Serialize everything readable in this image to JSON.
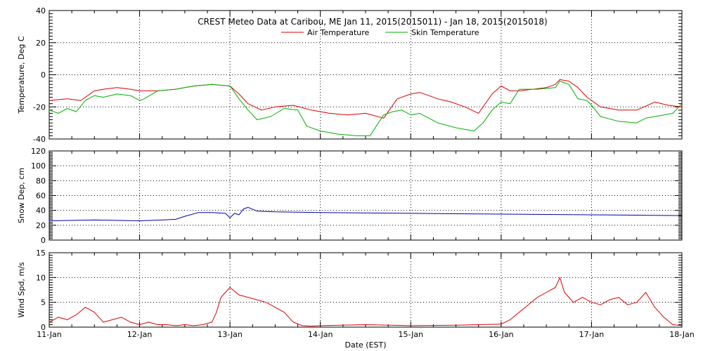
{
  "chart_data": [
    {
      "type": "line",
      "title": "CREST Meteo Data at Caribou, ME   Jan 11, 2015(2015011) - Jan 18, 2015(2015018)",
      "ylabel": "Temperature, Deg C",
      "xlim": [
        0,
        7
      ],
      "ylim": [
        -40,
        40
      ],
      "yticks": [
        -40,
        -20,
        0,
        20,
        40
      ],
      "grid": true,
      "legend": "top-center",
      "series": [
        {
          "name": "Air Temperature",
          "color": "#dd0000",
          "x": [
            0,
            0.2,
            0.35,
            0.5,
            0.6,
            0.75,
            0.9,
            1.0,
            1.2,
            1.4,
            1.6,
            1.8,
            2.0,
            2.1,
            2.2,
            2.35,
            2.5,
            2.7,
            2.9,
            3.1,
            3.3,
            3.5,
            3.7,
            3.85,
            4.0,
            4.1,
            4.2,
            4.3,
            4.45,
            4.6,
            4.75,
            4.9,
            5.0,
            5.1,
            5.2,
            5.35,
            5.5,
            5.6,
            5.65,
            5.75,
            5.85,
            5.95,
            6.1,
            6.3,
            6.5,
            6.7,
            6.85,
            7.0
          ],
          "values": [
            -16,
            -15,
            -16,
            -10,
            -9,
            -8,
            -9,
            -10,
            -10,
            -9,
            -7,
            -6,
            -7,
            -12,
            -18,
            -22,
            -20,
            -19,
            -22,
            -24,
            -25,
            -24,
            -27,
            -15,
            -12,
            -11,
            -13,
            -15,
            -17,
            -20,
            -24,
            -12,
            -7,
            -10,
            -10,
            -9,
            -8,
            -6,
            -3,
            -4,
            -8,
            -14,
            -20,
            -22,
            -22,
            -17,
            -19,
            -20
          ]
        },
        {
          "name": "Skin Temperature",
          "color": "#00b000",
          "x": [
            0,
            0.1,
            0.2,
            0.3,
            0.4,
            0.5,
            0.6,
            0.75,
            0.9,
            1.0,
            1.05,
            1.2,
            1.4,
            1.6,
            1.8,
            2.0,
            2.1,
            2.2,
            2.3,
            2.45,
            2.6,
            2.75,
            2.85,
            3.0,
            3.2,
            3.4,
            3.55,
            3.7,
            3.8,
            3.9,
            4.0,
            4.1,
            4.2,
            4.3,
            4.5,
            4.7,
            4.8,
            4.9,
            5.0,
            5.1,
            5.2,
            5.4,
            5.6,
            5.65,
            5.75,
            5.85,
            5.95,
            6.0,
            6.1,
            6.3,
            6.5,
            6.6,
            6.8,
            6.9,
            7.0
          ],
          "values": [
            -22,
            -24,
            -21,
            -23,
            -16,
            -13,
            -14,
            -12,
            -13,
            -16,
            -15,
            -10,
            -9,
            -7,
            -6,
            -7,
            -15,
            -22,
            -28,
            -26,
            -21,
            -22,
            -32,
            -35,
            -37,
            -38,
            -38,
            -25,
            -23,
            -22,
            -25,
            -24,
            -27,
            -30,
            -33,
            -35,
            -30,
            -22,
            -17,
            -18,
            -9,
            -9,
            -8,
            -4,
            -6,
            -15,
            -16,
            -19,
            -26,
            -29,
            -30,
            -27,
            -25,
            -24,
            -18
          ]
        }
      ]
    },
    {
      "type": "line",
      "ylabel": "Snow Dep, cm",
      "xlim": [
        0,
        7
      ],
      "ylim": [
        0,
        120
      ],
      "yticks": [
        0,
        20,
        40,
        60,
        80,
        100,
        120
      ],
      "grid": true,
      "series": [
        {
          "color": "#0000aa",
          "x": [
            0,
            0.5,
            1.0,
            1.25,
            1.4,
            1.5,
            1.65,
            1.8,
            1.95,
            2.0,
            2.05,
            2.1,
            2.15,
            2.2,
            2.3,
            2.5,
            3.0,
            4.0,
            5.0,
            6.0,
            7.0
          ],
          "values": [
            26,
            27,
            26,
            27,
            28,
            32,
            37,
            37,
            36,
            30,
            36,
            34,
            42,
            44,
            39,
            38,
            37,
            36,
            35,
            34,
            33
          ]
        }
      ]
    },
    {
      "type": "line",
      "ylabel": "Wind Spd, m/s",
      "xlabel": "Date (EST)",
      "xlim": [
        0,
        7
      ],
      "ylim": [
        0,
        15
      ],
      "yticks": [
        0,
        5,
        10,
        15
      ],
      "xticklabels": [
        "11-Jan",
        "12-Jan",
        "13-Jan",
        "14-Jan",
        "15-Jan",
        "16-Jan",
        "17-Jan",
        "18-Jan"
      ],
      "grid": true,
      "series": [
        {
          "color": "#dd0000",
          "x": [
            0,
            0.1,
            0.2,
            0.3,
            0.4,
            0.5,
            0.6,
            0.7,
            0.8,
            0.9,
            1.0,
            1.1,
            1.2,
            1.3,
            1.4,
            1.5,
            1.6,
            1.7,
            1.8,
            1.85,
            1.9,
            1.95,
            2.0,
            2.1,
            2.2,
            2.3,
            2.4,
            2.5,
            2.6,
            2.7,
            2.8,
            2.9,
            3.0,
            3.5,
            4.0,
            4.5,
            5.0,
            5.1,
            5.2,
            5.3,
            5.4,
            5.5,
            5.6,
            5.65,
            5.7,
            5.8,
            5.9,
            6.0,
            6.1,
            6.2,
            6.3,
            6.4,
            6.5,
            6.6,
            6.7,
            6.8,
            6.9,
            7.0
          ],
          "values": [
            1,
            2,
            1.5,
            2.5,
            4,
            3,
            1,
            1.5,
            2,
            1,
            0.5,
            1,
            0.5,
            0.5,
            0.3,
            0.5,
            0.3,
            0.5,
            1,
            3,
            6,
            7,
            8,
            6.5,
            6,
            5.5,
            5,
            4,
            3,
            1,
            0.3,
            0.2,
            0.3,
            0.5,
            0.3,
            0.4,
            0.6,
            1.5,
            3,
            4.5,
            6,
            7,
            8,
            10,
            7,
            5,
            6,
            5,
            4.5,
            5.5,
            6,
            4.5,
            5,
            7,
            4,
            2,
            0.5,
            0.3
          ]
        }
      ]
    }
  ]
}
